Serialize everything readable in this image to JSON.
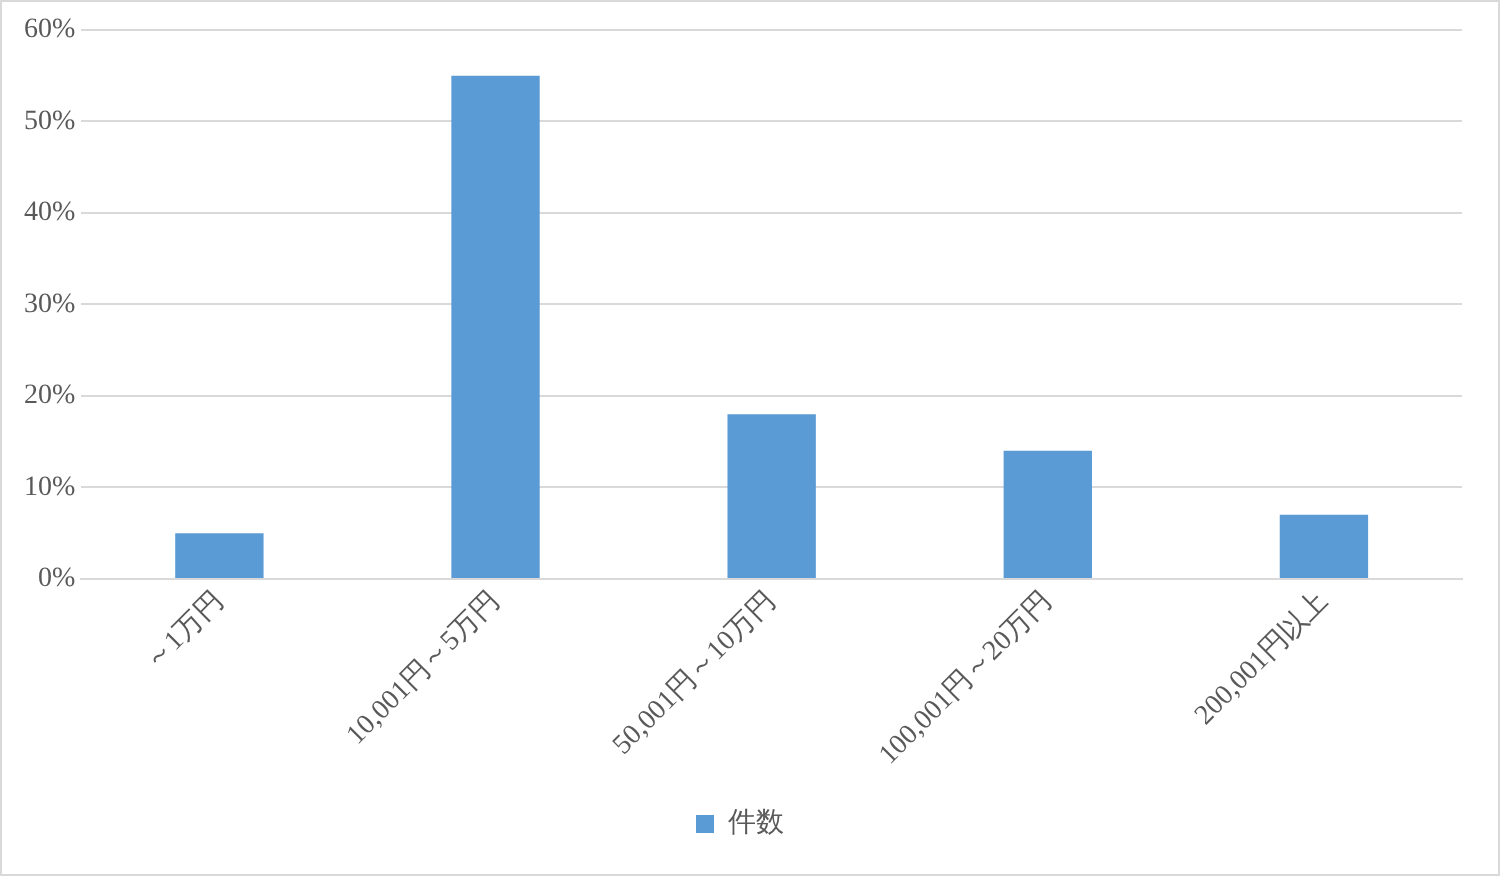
{
  "chart_data": {
    "type": "bar",
    "categories": [
      "～1万円",
      "10,001円～5万円",
      "50,001円～10万円",
      "100,001円～20万円",
      "200,001円以上"
    ],
    "series": [
      {
        "name": "件数",
        "color": "#5b9bd5",
        "values": [
          5,
          55,
          18,
          14,
          7
        ]
      }
    ],
    "ylim": [
      0,
      60
    ],
    "yticks": [
      {
        "value": 0,
        "label": "0%"
      },
      {
        "value": 10,
        "label": "10%"
      },
      {
        "value": 20,
        "label": "20%"
      },
      {
        "value": 30,
        "label": "30%"
      },
      {
        "value": 40,
        "label": "40%"
      },
      {
        "value": 50,
        "label": "50%"
      },
      {
        "value": 60,
        "label": "60%"
      }
    ],
    "grid": "y",
    "legend": "bottom"
  }
}
